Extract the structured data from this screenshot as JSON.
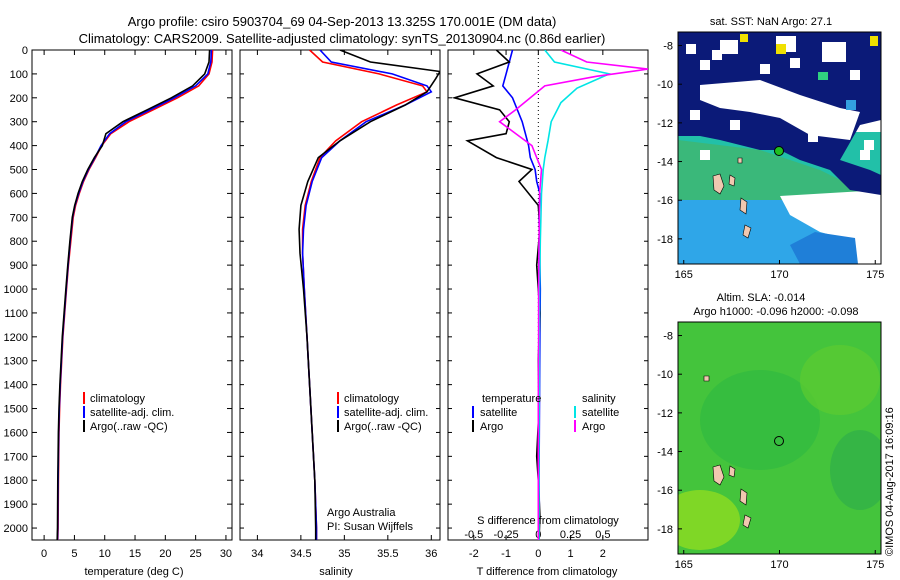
{
  "header": {
    "line1": "Argo profile: csiro 5903704_69 04-Sep-2013 13.325S 170.001E (DM data)",
    "line2": "Climatology: CARS2009. Satellite-adjusted climatology: synTS_20130904.nc (0.86d earlier)"
  },
  "colors": {
    "climatology": "#ff0000",
    "satellite": "#0000ff",
    "argo": "#000000",
    "sat_salinity": "#00e5e5",
    "argo_salinity": "#ff00ff"
  },
  "chart_data": [
    {
      "type": "line",
      "panel": "temperature",
      "xlabel": "temperature (deg C)",
      "ylabel": "",
      "xlim": [
        -2,
        31
      ],
      "ylim": [
        2050,
        0
      ],
      "xticks": [
        "0",
        "5",
        "10",
        "15",
        "20",
        "25",
        "30"
      ],
      "yticks": [
        "0",
        "100",
        "200",
        "300",
        "400",
        "500",
        "600",
        "700",
        "800",
        "900",
        "1000",
        "1100",
        "1200",
        "1300",
        "1400",
        "1500",
        "1600",
        "1700",
        "1800",
        "1900",
        "2000"
      ],
      "legend": [
        "climatology",
        "satellite-adj. clim.",
        "Argo(..raw -QC)"
      ],
      "series": [
        {
          "name": "climatology",
          "x": [
            27.8,
            27.7,
            27.2,
            25.5,
            22,
            18,
            14,
            11,
            9.5,
            8.5,
            7.4,
            6.5,
            5.8,
            5.2,
            4.8,
            4.4,
            4.0,
            3.7,
            3.4,
            3.1,
            2.9,
            2.7,
            2.55,
            2.45,
            2.35,
            2.3,
            2.25
          ],
          "y": [
            0,
            50,
            100,
            150,
            200,
            250,
            300,
            350,
            400,
            450,
            500,
            550,
            600,
            650,
            700,
            800,
            900,
            1000,
            1100,
            1200,
            1300,
            1400,
            1500,
            1600,
            1800,
            2000,
            2050
          ]
        },
        {
          "name": "satellite-adj. clim.",
          "x": [
            27.6,
            27.5,
            27.0,
            25,
            21.5,
            17.5,
            13.5,
            10.8,
            9.4,
            8.4,
            7.3,
            6.4,
            5.7,
            5.1,
            4.7,
            4.3,
            3.95,
            3.65,
            3.35,
            3.05,
            2.85,
            2.65,
            2.5,
            2.4,
            2.3,
            2.25,
            2.2
          ],
          "y": [
            0,
            50,
            100,
            150,
            200,
            250,
            300,
            350,
            400,
            450,
            500,
            550,
            600,
            650,
            700,
            800,
            900,
            1000,
            1100,
            1200,
            1300,
            1400,
            1500,
            1600,
            1800,
            2000,
            2050
          ]
        },
        {
          "name": "Argo(..raw -QC)",
          "x": [
            27.3,
            27.2,
            26.5,
            24.5,
            21,
            17,
            13,
            10.2,
            9.6,
            8.3,
            7.2,
            6.3,
            5.6,
            5.05,
            4.65,
            4.25,
            3.9,
            3.6,
            3.3,
            3.0,
            2.8,
            2.6,
            2.45,
            2.35,
            2.25,
            2.2,
            2.15
          ],
          "y": [
            0,
            50,
            100,
            150,
            200,
            250,
            300,
            350,
            400,
            450,
            500,
            550,
            600,
            650,
            700,
            800,
            900,
            1000,
            1100,
            1200,
            1300,
            1400,
            1500,
            1600,
            1800,
            2000,
            2050
          ]
        }
      ]
    },
    {
      "type": "line",
      "panel": "salinity",
      "xlabel": "salinity",
      "xlim": [
        33.8,
        36.1
      ],
      "ylim": [
        2050,
        0
      ],
      "xticks": [
        "34",
        "34.5",
        "35",
        "35.5",
        "36"
      ],
      "legend": [
        "climatology",
        "satellite-adj. clim.",
        "Argo(..raw -QC)"
      ],
      "annotation": [
        "Argo Australia",
        "PI: Susan Wijffels"
      ],
      "series": [
        {
          "name": "climatology",
          "x": [
            34.6,
            34.75,
            35.4,
            35.9,
            35.95,
            35.6,
            35.2,
            34.9,
            34.72,
            34.62,
            34.55,
            34.52,
            34.52,
            34.54,
            34.57,
            34.6,
            34.63,
            34.66,
            34.68,
            34.68
          ],
          "y": [
            0,
            50,
            100,
            150,
            175,
            230,
            300,
            380,
            450,
            550,
            650,
            750,
            850,
            1000,
            1200,
            1400,
            1600,
            1800,
            2000,
            2050
          ]
        },
        {
          "name": "satellite-adj. clim.",
          "x": [
            34.72,
            34.85,
            35.55,
            35.95,
            36.0,
            35.7,
            35.25,
            34.95,
            34.74,
            34.63,
            34.56,
            34.53,
            34.52,
            34.54,
            34.57,
            34.6,
            34.63,
            34.66,
            34.68,
            34.68
          ],
          "y": [
            0,
            50,
            100,
            150,
            175,
            230,
            300,
            380,
            450,
            550,
            650,
            750,
            850,
            1000,
            1200,
            1400,
            1600,
            1800,
            2000,
            2050
          ]
        },
        {
          "name": "Argo(..raw -QC)",
          "x": [
            34.95,
            35.3,
            36.1,
            36.05,
            35.95,
            35.7,
            35.3,
            34.95,
            34.7,
            34.58,
            34.5,
            34.48,
            34.49,
            34.53,
            34.57,
            34.6,
            34.63,
            34.66,
            34.67,
            34.67
          ],
          "y": [
            0,
            50,
            90,
            120,
            175,
            230,
            300,
            380,
            450,
            550,
            650,
            750,
            850,
            1000,
            1200,
            1400,
            1600,
            1800,
            2000,
            2050
          ]
        }
      ]
    },
    {
      "type": "line",
      "panel": "difference",
      "xlabel": "T difference from climatology",
      "xlabel_top": "S difference from climatology",
      "xlim": [
        -2.8,
        3.4
      ],
      "ylim": [
        2050,
        0
      ],
      "xticks": [
        "-2",
        "-1",
        "0",
        "1",
        "2"
      ],
      "xticks_s": [
        "-0.5",
        "-0.25",
        "0",
        "0.25",
        "0.5"
      ],
      "legend": {
        "temperature": "temperature",
        "salinity": "salinity",
        "satellite": "satellite",
        "argo": "Argo"
      },
      "series": [
        {
          "name": "satellite",
          "x": [
            -0.8,
            -0.9,
            -1.0,
            -1.1,
            -0.8,
            -0.5,
            -0.3,
            -0.25,
            -0.1,
            -0.05,
            0.05,
            0.02,
            0.04,
            0.05,
            0.06,
            0.05,
            0.04,
            0.03,
            0.02,
            0.03,
            0.02,
            0.01
          ],
          "y": [
            0,
            50,
            100,
            150,
            200,
            300,
            400,
            450,
            500,
            550,
            600,
            700,
            800,
            900,
            1000,
            1200,
            1400,
            1600,
            1800,
            1900,
            2000,
            2050
          ]
        },
        {
          "name": "Argo",
          "x": [
            -1.3,
            -0.9,
            -1.9,
            -1.4,
            -2.6,
            -1.2,
            -0.9,
            -1.0,
            -2.2,
            -1.3,
            -0.2,
            -0.6,
            0.0,
            0.05,
            -0.05,
            0.05,
            0.0,
            0.02,
            -0.05,
            0.0,
            0.05,
            0.02
          ],
          "y": [
            0,
            50,
            100,
            150,
            200,
            250,
            300,
            350,
            380,
            450,
            500,
            550,
            650,
            750,
            900,
            1100,
            1300,
            1500,
            1700,
            1800,
            1950,
            2050
          ]
        },
        {
          "name": "satellite salinity",
          "x": [
            0.2,
            0.5,
            2.2,
            1.2,
            0.7,
            0.4,
            0.3,
            0.2,
            0.15,
            0.1,
            0.08,
            0.06,
            0.04,
            0.03,
            0.03,
            0.02,
            0.02,
            0.02
          ],
          "y": [
            0,
            50,
            100,
            160,
            220,
            300,
            380,
            450,
            500,
            600,
            700,
            800,
            1000,
            1200,
            1400,
            1600,
            1800,
            2050
          ]
        },
        {
          "name": "Argo salinity",
          "x": [
            0.7,
            1.5,
            3.4,
            1.8,
            0.2,
            -0.7,
            -1.2,
            -0.2,
            0.1,
            0.04,
            0.02,
            0.01,
            0.01,
            0.0,
            0.0,
            0.0
          ],
          "y": [
            0,
            50,
            80,
            110,
            150,
            250,
            300,
            400,
            500,
            600,
            800,
            1000,
            1200,
            1500,
            1800,
            2050
          ]
        }
      ]
    }
  ],
  "map_sst": {
    "title": "sat. SST: NaN Argo: 27.1",
    "yticks": [
      "-8",
      "-10",
      "-12",
      "-14",
      "-16",
      "-18"
    ],
    "xticks": [
      "165",
      "170",
      "175"
    ]
  },
  "map_sla": {
    "title1": "Altim. SLA: -0.014",
    "title2": "Argo h1000: -0.096 h2000: -0.098",
    "yticks": [
      "-8",
      "-10",
      "-12",
      "-14",
      "-16",
      "-18"
    ],
    "xticks": [
      "165",
      "170",
      "175"
    ]
  },
  "credit": "©IMOS 04-Aug-2017 16:09:16"
}
